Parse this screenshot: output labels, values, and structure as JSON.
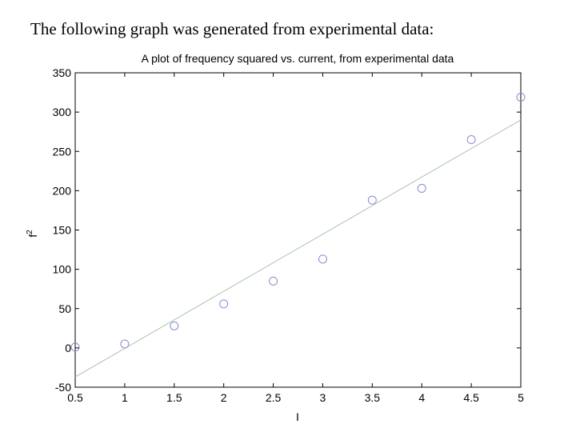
{
  "heading": "The following graph was generated from experimental data:",
  "chart_data": {
    "type": "scatter",
    "title": "A plot of frequency squared vs. current, from experimental data",
    "xlabel": "I",
    "ylabel_base": "f",
    "ylabel_sup": "2",
    "xlim": [
      0.5,
      5
    ],
    "ylim": [
      -50,
      350
    ],
    "xticks": [
      0.5,
      1,
      1.5,
      2,
      2.5,
      3,
      3.5,
      4,
      4.5,
      5
    ],
    "xtick_labels": [
      "0.5",
      "1",
      "1.5",
      "2",
      "2.5",
      "3",
      "3.5",
      "4",
      "4.5",
      "5"
    ],
    "yticks": [
      -50,
      0,
      50,
      100,
      150,
      200,
      250,
      300,
      350
    ],
    "ytick_labels": [
      "-50",
      "0",
      "50",
      "100",
      "150",
      "200",
      "250",
      "300",
      "350"
    ],
    "grid": false,
    "series": [
      {
        "type": "scatter",
        "x": [
          0.5,
          1,
          1.5,
          2,
          2.5,
          3,
          3.5,
          4,
          4.5,
          5
        ],
        "y": [
          1,
          5,
          28,
          56,
          85,
          113,
          188,
          203,
          265,
          319
        ]
      },
      {
        "type": "line",
        "x": [
          0.5,
          5
        ],
        "y": [
          -37,
          290
        ]
      }
    ],
    "colors": {
      "marker": "#8a8ad0",
      "fit_line": "#a9c4a9",
      "axes": "#000000"
    }
  }
}
